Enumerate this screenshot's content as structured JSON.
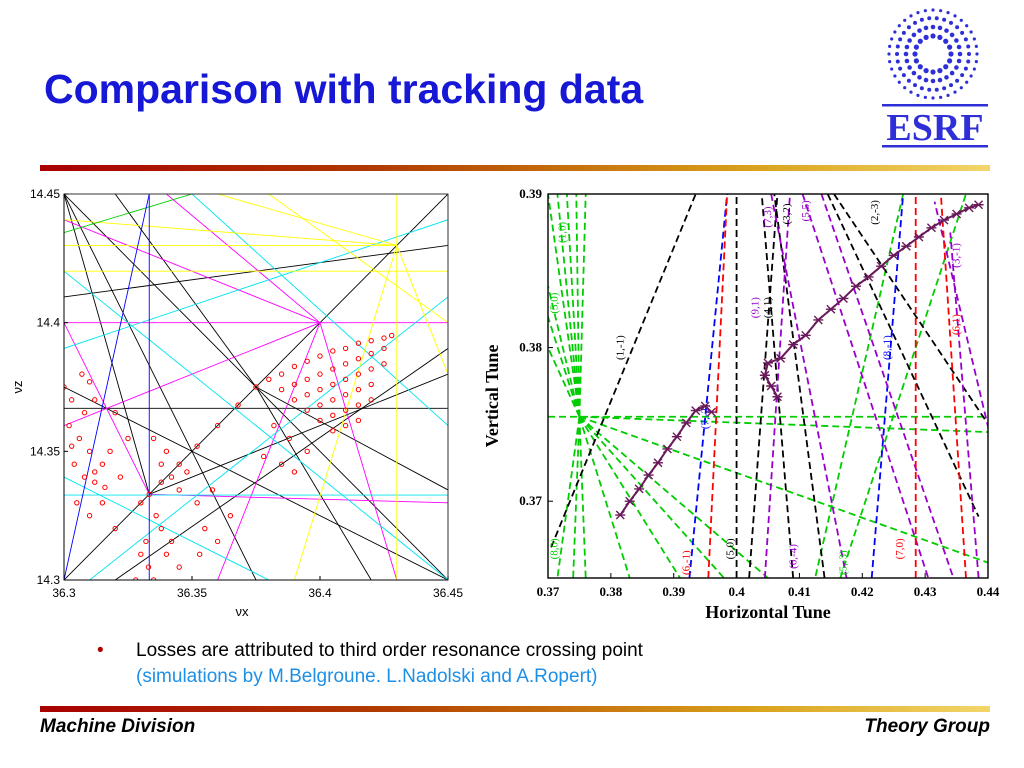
{
  "slide": {
    "title": "Comparison with tracking data",
    "logo_text": "ESRF",
    "bullet": "Losses are attributed to third order resonance crossing point",
    "credit": "(simulations by M.Belgroune. L.Nadolski  and A.Ropert)",
    "footer_left": "Machine Division",
    "footer_right": "Theory Group",
    "colors": {
      "title": "#1717d6",
      "credit": "#1e8fe6",
      "logo": "#2f2fd8",
      "rule_start": "#a80000",
      "rule_end": "#f3d66a"
    }
  },
  "chart_data": [
    {
      "type": "scatter",
      "title": "",
      "xlabel": "νx",
      "ylabel": "νz",
      "xlim": [
        36.3,
        36.45
      ],
      "ylim": [
        14.3,
        14.45
      ],
      "xticks": [
        "36.3",
        "36.35",
        "36.4",
        "36.45"
      ],
      "yticks": [
        "14.3",
        "14.35",
        "14.4",
        "14.45"
      ],
      "grid": false,
      "resonance_line_colors": [
        "#000000",
        "#ff00ff",
        "#00e5ee",
        "#ffff00",
        "#00cc00",
        "#0000ff"
      ],
      "series": [
        {
          "color": "#ff0000",
          "points": [
            [
              36.3333,
              14.3333
            ],
            [
              36.32,
              14.32
            ],
            [
              36.33,
              14.33
            ],
            [
              36.338,
              14.338
            ],
            [
              36.345,
              14.345
            ],
            [
              36.352,
              14.352
            ],
            [
              36.36,
              14.36
            ],
            [
              36.368,
              14.368
            ],
            [
              36.375,
              14.375
            ],
            [
              36.38,
              14.378
            ],
            [
              36.385,
              14.38
            ],
            [
              36.39,
              14.383
            ],
            [
              36.395,
              14.385
            ],
            [
              36.4,
              14.387
            ],
            [
              36.405,
              14.389
            ],
            [
              36.41,
              14.39
            ],
            [
              36.415,
              14.392
            ],
            [
              36.42,
              14.393
            ],
            [
              36.425,
              14.394
            ],
            [
              36.428,
              14.395
            ],
            [
              36.385,
              14.374
            ],
            [
              36.39,
              14.376
            ],
            [
              36.395,
              14.378
            ],
            [
              36.4,
              14.38
            ],
            [
              36.405,
              14.382
            ],
            [
              36.41,
              14.384
            ],
            [
              36.415,
              14.386
            ],
            [
              36.42,
              14.388
            ],
            [
              36.425,
              14.39
            ],
            [
              36.39,
              14.37
            ],
            [
              36.395,
              14.372
            ],
            [
              36.4,
              14.374
            ],
            [
              36.405,
              14.376
            ],
            [
              36.41,
              14.378
            ],
            [
              36.415,
              14.38
            ],
            [
              36.42,
              14.382
            ],
            [
              36.425,
              14.384
            ],
            [
              36.395,
              14.366
            ],
            [
              36.4,
              14.368
            ],
            [
              36.405,
              14.37
            ],
            [
              36.41,
              14.372
            ],
            [
              36.415,
              14.374
            ],
            [
              36.42,
              14.376
            ],
            [
              36.4,
              14.362
            ],
            [
              36.405,
              14.364
            ],
            [
              36.41,
              14.366
            ],
            [
              36.415,
              14.368
            ],
            [
              36.42,
              14.37
            ],
            [
              36.405,
              14.358
            ],
            [
              36.41,
              14.36
            ],
            [
              36.415,
              14.362
            ],
            [
              36.382,
              14.36
            ],
            [
              36.388,
              14.355
            ],
            [
              36.395,
              14.35
            ],
            [
              36.385,
              14.345
            ],
            [
              36.39,
              14.342
            ],
            [
              36.378,
              14.348
            ],
            [
              36.302,
              14.36
            ],
            [
              36.306,
              14.355
            ],
            [
              36.31,
              14.35
            ],
            [
              36.304,
              14.345
            ],
            [
              36.308,
              14.34
            ],
            [
              36.312,
              14.338
            ],
            [
              36.315,
              14.345
            ],
            [
              36.305,
              14.33
            ],
            [
              36.31,
              14.325
            ],
            [
              36.315,
              14.33
            ],
            [
              36.32,
              14.365
            ],
            [
              36.325,
              14.355
            ],
            [
              36.318,
              14.35
            ],
            [
              36.308,
              14.365
            ],
            [
              36.303,
              14.352
            ],
            [
              36.312,
              14.342
            ],
            [
              36.316,
              14.336
            ],
            [
              36.322,
              14.34
            ],
            [
              36.33,
              14.31
            ],
            [
              36.333,
              14.305
            ],
            [
              36.335,
              14.3
            ],
            [
              36.34,
              14.31
            ],
            [
              36.342,
              14.315
            ],
            [
              36.338,
              14.32
            ],
            [
              36.345,
              14.305
            ],
            [
              36.332,
              14.315
            ],
            [
              36.328,
              14.3
            ],
            [
              36.336,
              14.325
            ],
            [
              36.338,
              14.345
            ],
            [
              36.342,
              14.34
            ],
            [
              36.345,
              14.335
            ],
            [
              36.348,
              14.342
            ],
            [
              36.34,
              14.35
            ],
            [
              36.335,
              14.355
            ],
            [
              36.352,
              14.33
            ],
            [
              36.355,
              14.32
            ],
            [
              36.36,
              14.315
            ],
            [
              36.365,
              14.325
            ],
            [
              36.358,
              14.335
            ],
            [
              36.353,
              14.31
            ],
            [
              36.3,
              14.375
            ],
            [
              36.303,
              14.37
            ],
            [
              36.307,
              14.38
            ],
            [
              36.312,
              14.37
            ],
            [
              36.31,
              14.377
            ]
          ]
        }
      ]
    },
    {
      "type": "line",
      "title": "",
      "xlabel": "Horizontal Tune",
      "ylabel": "Vertical Tune",
      "xlim": [
        0.37,
        0.44
      ],
      "ylim": [
        0.365,
        0.39
      ],
      "xticks": [
        "0.37",
        "0.38",
        "0.39",
        "0.4",
        "0.41",
        "0.42",
        "0.43",
        "0.44"
      ],
      "yticks": [
        "0.37",
        "0.38",
        "0.39"
      ],
      "grid": false,
      "resonance_labels": [
        {
          "text": "(1,-1)",
          "x": 0.382,
          "y": 0.38,
          "color": "#000000"
        },
        {
          "text": "(2,-3)",
          "x": 0.4225,
          "y": 0.3888,
          "color": "#000000"
        },
        {
          "text": "(3,2)",
          "x": 0.4085,
          "y": 0.3887,
          "color": "#000000"
        },
        {
          "text": "(4,1)",
          "x": 0.4055,
          "y": 0.3826,
          "color": "#000000"
        },
        {
          "text": "(5,0)",
          "x": 0.3995,
          "y": 0.3669,
          "color": "#000000"
        },
        {
          "text": "(7,-2)",
          "x": 0.3955,
          "y": 0.3755,
          "color": "#0000ff"
        },
        {
          "text": "(8,-1)",
          "x": 0.4245,
          "y": 0.38,
          "color": "#0000ff"
        },
        {
          "text": "(7,3)",
          "x": 0.4055,
          "y": 0.3885,
          "color": "#9900cc"
        },
        {
          "text": "(5,5)",
          "x": 0.4115,
          "y": 0.3889,
          "color": "#9900cc"
        },
        {
          "text": "(9,1)",
          "x": 0.4035,
          "y": 0.3826,
          "color": "#9900cc"
        },
        {
          "text": "(6,-4)",
          "x": 0.4095,
          "y": 0.3664,
          "color": "#9900cc"
        },
        {
          "text": "(3,-1)",
          "x": 0.4355,
          "y": 0.386,
          "color": "#9900cc"
        },
        {
          "text": "(6,-1)",
          "x": 0.3925,
          "y": 0.366,
          "color": "#ff0000"
        },
        {
          "text": "(7,0)",
          "x": 0.4265,
          "y": 0.3669,
          "color": "#ff0000"
        },
        {
          "text": "(6,1)",
          "x": 0.4355,
          "y": 0.3815,
          "color": "#ff0000"
        },
        {
          "text": "(8,0)",
          "x": 0.3715,
          "y": 0.3669,
          "color": "#00cc00"
        },
        {
          "text": "(5,-3)",
          "x": 0.4175,
          "y": 0.366,
          "color": "#00cc00"
        },
        {
          "text": "(1,0)",
          "x": 0.3728,
          "y": 0.3875,
          "color": "#00cc00"
        },
        {
          "text": "(5,0)",
          "x": 0.3715,
          "y": 0.3829,
          "color": "#00cc00"
        }
      ],
      "series": [
        {
          "color": "#6a1a5a",
          "marker": "x",
          "points": [
            [
              0.3815,
              0.3691
            ],
            [
              0.383,
              0.37
            ],
            [
              0.3845,
              0.3708
            ],
            [
              0.386,
              0.3717
            ],
            [
              0.3875,
              0.3725
            ],
            [
              0.389,
              0.3734
            ],
            [
              0.3905,
              0.3742
            ],
            [
              0.392,
              0.3751
            ],
            [
              0.3935,
              0.3759
            ],
            [
              0.395,
              0.3762
            ],
            [
              0.396,
              0.3758
            ]
          ]
        },
        {
          "color": "#6a1a5a",
          "marker": "x",
          "points": [
            [
              0.4065,
              0.3768
            ],
            [
              0.4055,
              0.3775
            ],
            [
              0.4045,
              0.3782
            ],
            [
              0.405,
              0.379
            ],
            [
              0.407,
              0.3793
            ],
            [
              0.409,
              0.3802
            ],
            [
              0.411,
              0.3808
            ],
            [
              0.413,
              0.3818
            ],
            [
              0.415,
              0.3825
            ],
            [
              0.417,
              0.3832
            ],
            [
              0.419,
              0.384
            ],
            [
              0.421,
              0.3846
            ],
            [
              0.423,
              0.3853
            ],
            [
              0.425,
              0.386
            ],
            [
              0.427,
              0.3866
            ],
            [
              0.429,
              0.3872
            ],
            [
              0.431,
              0.3878
            ],
            [
              0.433,
              0.3883
            ],
            [
              0.435,
              0.3887
            ],
            [
              0.437,
              0.3891
            ],
            [
              0.4385,
              0.3893
            ]
          ]
        }
      ]
    }
  ]
}
